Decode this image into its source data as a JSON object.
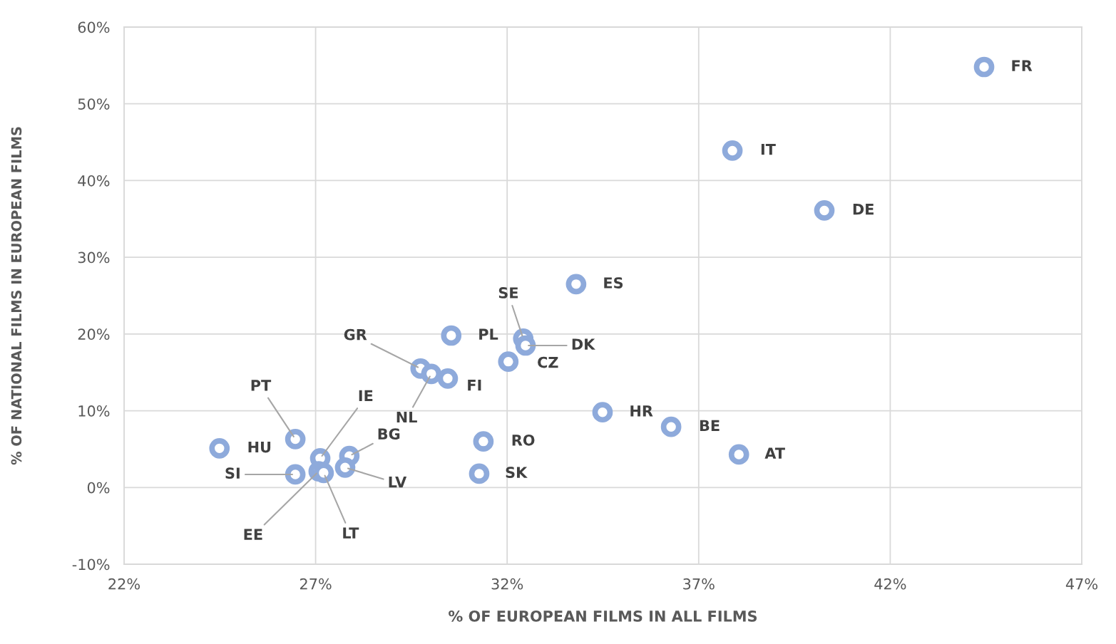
{
  "chart_data": {
    "type": "scatter",
    "xlabel": "% OF EUROPEAN FILMS IN ALL FILMS",
    "ylabel": "% OF NATIONAL FILMS IN EUROPEAN FILMS",
    "xlim": [
      22,
      47
    ],
    "ylim": [
      -10,
      60
    ],
    "xticks": [
      {
        "value": 22,
        "label": "22%"
      },
      {
        "value": 27,
        "label": "27%"
      },
      {
        "value": 32,
        "label": "32%"
      },
      {
        "value": 37,
        "label": "37%"
      },
      {
        "value": 42,
        "label": "42%"
      },
      {
        "value": 47,
        "label": "47%"
      }
    ],
    "yticks": [
      {
        "value": -10,
        "label": "-10%"
      },
      {
        "value": 0,
        "label": "0%"
      },
      {
        "value": 10,
        "label": "10%"
      },
      {
        "value": 20,
        "label": "20%"
      },
      {
        "value": 30,
        "label": "30%"
      },
      {
        "value": 40,
        "label": "40%"
      },
      {
        "value": 50,
        "label": "50%"
      },
      {
        "value": 60,
        "label": "60%"
      }
    ],
    "grid": true,
    "marker": "circle",
    "series": [
      {
        "color": "#8eaadb",
        "x": [
          44.45,
          37.88,
          40.28,
          33.8,
          32.42,
          32.48,
          30.54,
          32.03,
          29.74,
          30.02,
          30.45,
          34.49,
          36.28,
          38.05,
          31.38,
          31.27,
          24.49,
          26.47,
          27.12,
          27.88,
          27.77,
          26.47,
          27.08,
          27.21
        ],
        "values": [
          54.8,
          43.9,
          36.1,
          26.5,
          19.4,
          18.5,
          19.8,
          16.4,
          15.5,
          14.8,
          14.2,
          9.8,
          7.9,
          4.3,
          6.0,
          1.8,
          5.1,
          6.3,
          3.8,
          4.1,
          2.6,
          1.7,
          2.1,
          1.9
        ]
      }
    ],
    "annotations": [
      {
        "text": "FR",
        "x": 44.45,
        "y": 54.8
      },
      {
        "text": "IT",
        "x": 37.88,
        "y": 43.9
      },
      {
        "text": "DE",
        "x": 40.28,
        "y": 36.1
      },
      {
        "text": "ES",
        "x": 33.8,
        "y": 26.5
      },
      {
        "text": "SE",
        "x": 32.42,
        "y": 19.4
      },
      {
        "text": "DK",
        "x": 32.48,
        "y": 18.5
      },
      {
        "text": "PL",
        "x": 30.54,
        "y": 19.8
      },
      {
        "text": "CZ",
        "x": 32.03,
        "y": 16.4
      },
      {
        "text": "GR",
        "x": 29.74,
        "y": 15.5
      },
      {
        "text": "NL",
        "x": 30.02,
        "y": 14.8
      },
      {
        "text": "FI",
        "x": 30.45,
        "y": 14.2
      },
      {
        "text": "HR",
        "x": 34.49,
        "y": 9.8
      },
      {
        "text": "BE",
        "x": 36.28,
        "y": 7.9
      },
      {
        "text": "AT",
        "x": 38.05,
        "y": 4.3
      },
      {
        "text": "RO",
        "x": 31.38,
        "y": 6.0
      },
      {
        "text": "SK",
        "x": 31.27,
        "y": 1.8
      },
      {
        "text": "HU",
        "x": 24.49,
        "y": 5.1
      },
      {
        "text": "PT",
        "x": 26.47,
        "y": 6.3
      },
      {
        "text": "IE",
        "x": 27.12,
        "y": 3.8
      },
      {
        "text": "BG",
        "x": 27.88,
        "y": 4.1
      },
      {
        "text": "LV",
        "x": 27.77,
        "y": 2.6
      },
      {
        "text": "SI",
        "x": 26.47,
        "y": 1.7
      },
      {
        "text": "EE",
        "x": 27.08,
        "y": 2.1
      },
      {
        "text": "LT",
        "x": 27.21,
        "y": 1.9
      }
    ]
  }
}
